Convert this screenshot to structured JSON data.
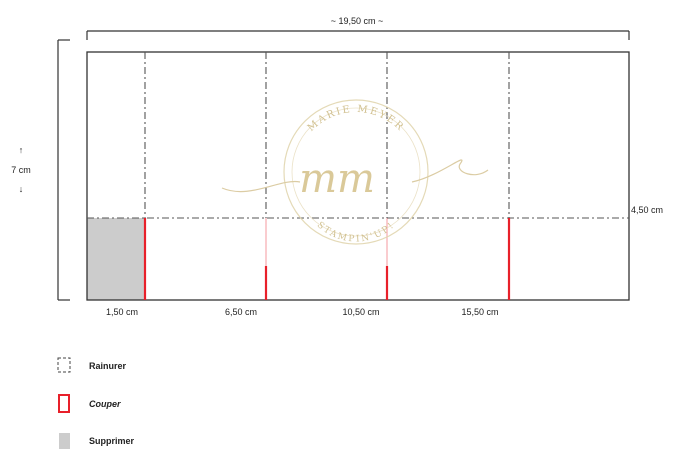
{
  "dimensions": {
    "width_label": "~ 19,50 cm ~",
    "height_label": "7 cm",
    "height_arrow_up": "↑",
    "height_arrow_down": "↓",
    "horizontal_score_label": "4,50 cm"
  },
  "score_positions": [
    {
      "label": "1,50 cm"
    },
    {
      "label": "6,50 cm"
    },
    {
      "label": "10,50 cm"
    },
    {
      "label": "15,50 cm"
    }
  ],
  "watermark": {
    "monogram": "mm",
    "top_arc": "MARIE MEYER",
    "bottom_arc": "STAMPIN'UP!"
  },
  "legend": [
    {
      "key": "score",
      "label": "Rainurer",
      "icon": "dashed-square-icon"
    },
    {
      "key": "cut",
      "label": "Couper",
      "icon": "red-rectangle-icon"
    },
    {
      "key": "remove",
      "label": "Supprimer",
      "icon": "gray-square-icon"
    }
  ],
  "colors": {
    "cut": "#e8202a",
    "remove": "#cccccc",
    "watermark": "#d8c79a",
    "line": "#333333"
  }
}
